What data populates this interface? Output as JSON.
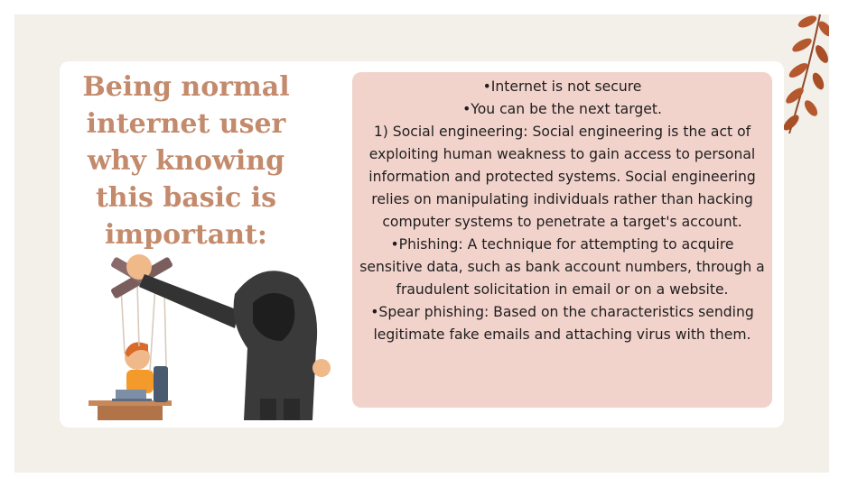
{
  "slide": {
    "heading": "Being normal\ninternet user\nwhy knowing\nthis basic is\nimportant:",
    "body_paragraphs": [
      "•Internet is not secure",
      "•You can be the next target.",
      "1) Social engineering: Social engineering is the act of exploiting human weakness to gain access to personal information and protected systems. Social engineering relies on manipulating individuals rather than hacking computer systems to penetrate a target's account.",
      "•Phishing: A technique for attempting to acquire sensitive data, such as bank account numbers, through a fraudulent solicitation in email or on a website.",
      "•Spear phishing: Based on the characteristics sending legitimate fake emails and attaching virus with them."
    ]
  },
  "images": {
    "illustration": "hooded-puppeteer-controlling-person-at-laptop",
    "decoration": "autumn-leaf-branch"
  },
  "colors": {
    "background": "#f3efe9",
    "card": "#ffffff",
    "heading": "#c48a6c",
    "textbox": "#f2d3cc",
    "leaf": "#b5582e",
    "hood": "#3a3a3a"
  }
}
